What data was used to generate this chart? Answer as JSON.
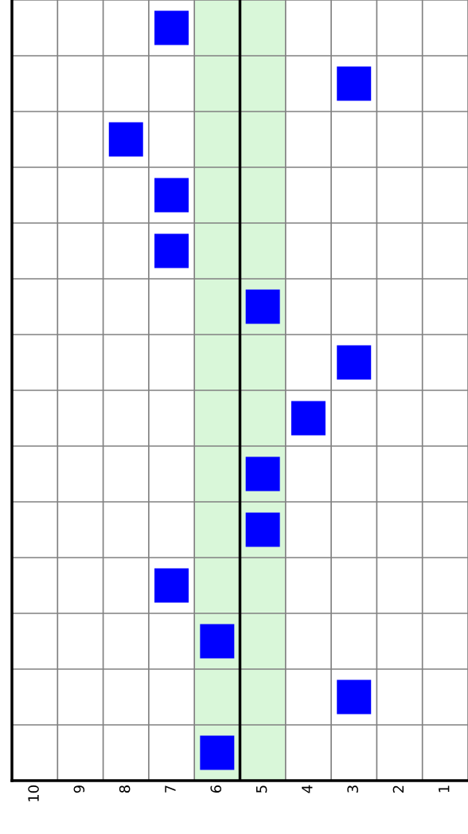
{
  "chart_data": {
    "type": "scatter",
    "orientation": "horizontal",
    "marker": "square",
    "grid": true,
    "categories": [
      null,
      null,
      null,
      null,
      null,
      null,
      null,
      null,
      null,
      null,
      null,
      null,
      null,
      null
    ],
    "series": [
      {
        "color": "#0000ff",
        "values": [
          7,
          3,
          8,
          7,
          7,
          5,
          3,
          4,
          5,
          5,
          7,
          6,
          3,
          6
        ]
      }
    ],
    "xlim": [
      10.5,
      0.5
    ],
    "xticks": [
      10,
      9,
      8,
      7,
      6,
      5,
      4,
      3,
      2,
      1
    ],
    "tick_labels": "x",
    "bands": [
      {
        "axis": "x",
        "from": 4.5,
        "to": 6.5,
        "color": "#d9f7d9"
      }
    ],
    "ref_lines": [
      {
        "axis": "x",
        "value": 5.5,
        "color": "#000000",
        "line_style": "solid"
      }
    ]
  }
}
